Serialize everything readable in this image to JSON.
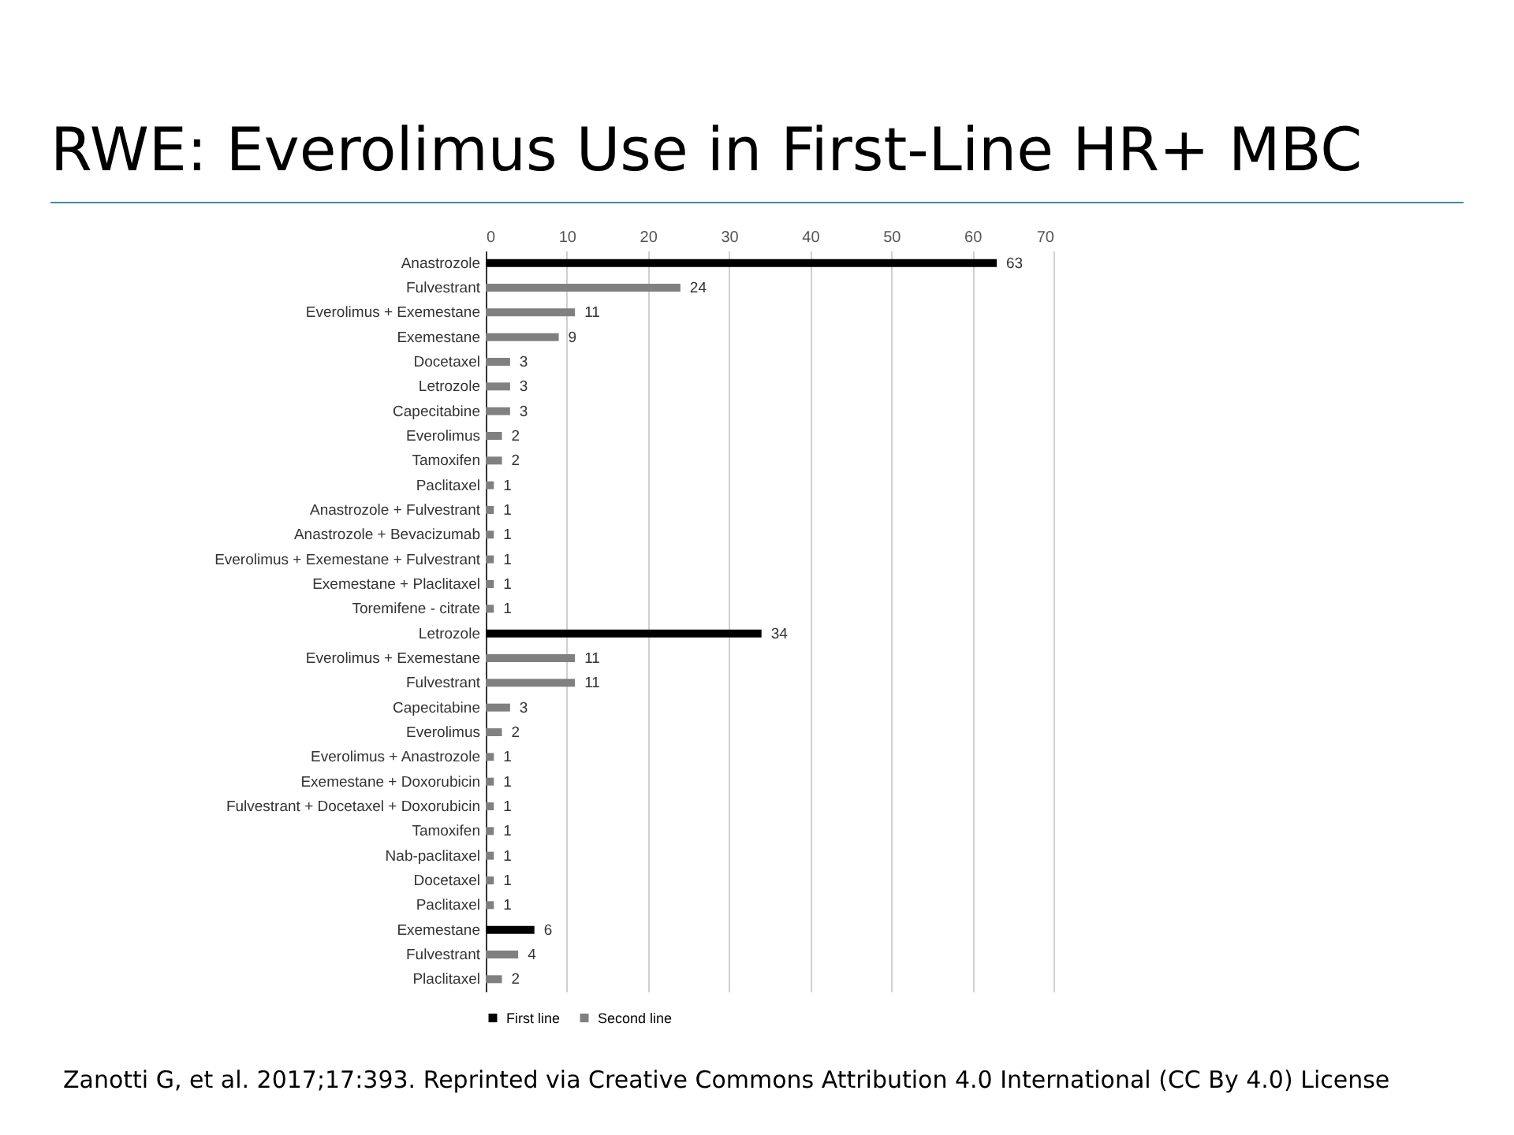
{
  "chart_data": {
    "type": "bar",
    "orientation": "horizontal",
    "title": "RWE: Everolimus Use in First-Line HR+ MBC",
    "categories": [
      "Anastrozole",
      "Fulvestrant",
      "Everolimus + Exemestane",
      "Exemestane",
      "Docetaxel",
      "Letrozole",
      "Capecitabine",
      "Everolimus",
      "Tamoxifen",
      "Paclitaxel",
      "Anastrozole + Fulvestrant",
      "Anastrozole + Bevacizumab",
      "Everolimus + Exemestane + Fulvestrant",
      "Exemestane + Placlitaxel",
      "Toremifene - citrate",
      "Letrozole",
      "Everolimus + Exemestane",
      "Fulvestrant",
      "Capecitabine",
      "Everolimus",
      "Everolimus + Anastrozole",
      "Exemestane + Doxorubicin",
      "Fulvestrant + Docetaxel + Doxorubicin",
      "Tamoxifen",
      "Nab-paclitaxel",
      "Docetaxel",
      "Paclitaxel",
      "Exemestane",
      "Fulvestrant",
      "Placlitaxel"
    ],
    "series": [
      {
        "name": "First line",
        "color": "#000000",
        "values": [
          63,
          null,
          null,
          null,
          null,
          null,
          null,
          null,
          null,
          null,
          null,
          null,
          null,
          null,
          null,
          34,
          null,
          null,
          null,
          null,
          null,
          null,
          null,
          null,
          null,
          null,
          null,
          6,
          null,
          null
        ]
      },
      {
        "name": "Second line",
        "color": "#808080",
        "values": [
          null,
          24,
          11,
          9,
          3,
          3,
          3,
          2,
          2,
          1,
          1,
          1,
          1,
          1,
          1,
          null,
          11,
          11,
          3,
          2,
          1,
          1,
          1,
          1,
          1,
          1,
          1,
          null,
          4,
          2
        ]
      }
    ],
    "xlim": [
      0,
      70
    ],
    "xticks": [
      0,
      10,
      20,
      30,
      40,
      50,
      60,
      70
    ],
    "grid": "x",
    "data_labels": true,
    "legend": "bottom",
    "annotations": [
      "Zanotti G, et al. 2017;17:393. Reprinted via Creative Commons Attribution 4.0 International (CC By 4.0) License"
    ]
  }
}
